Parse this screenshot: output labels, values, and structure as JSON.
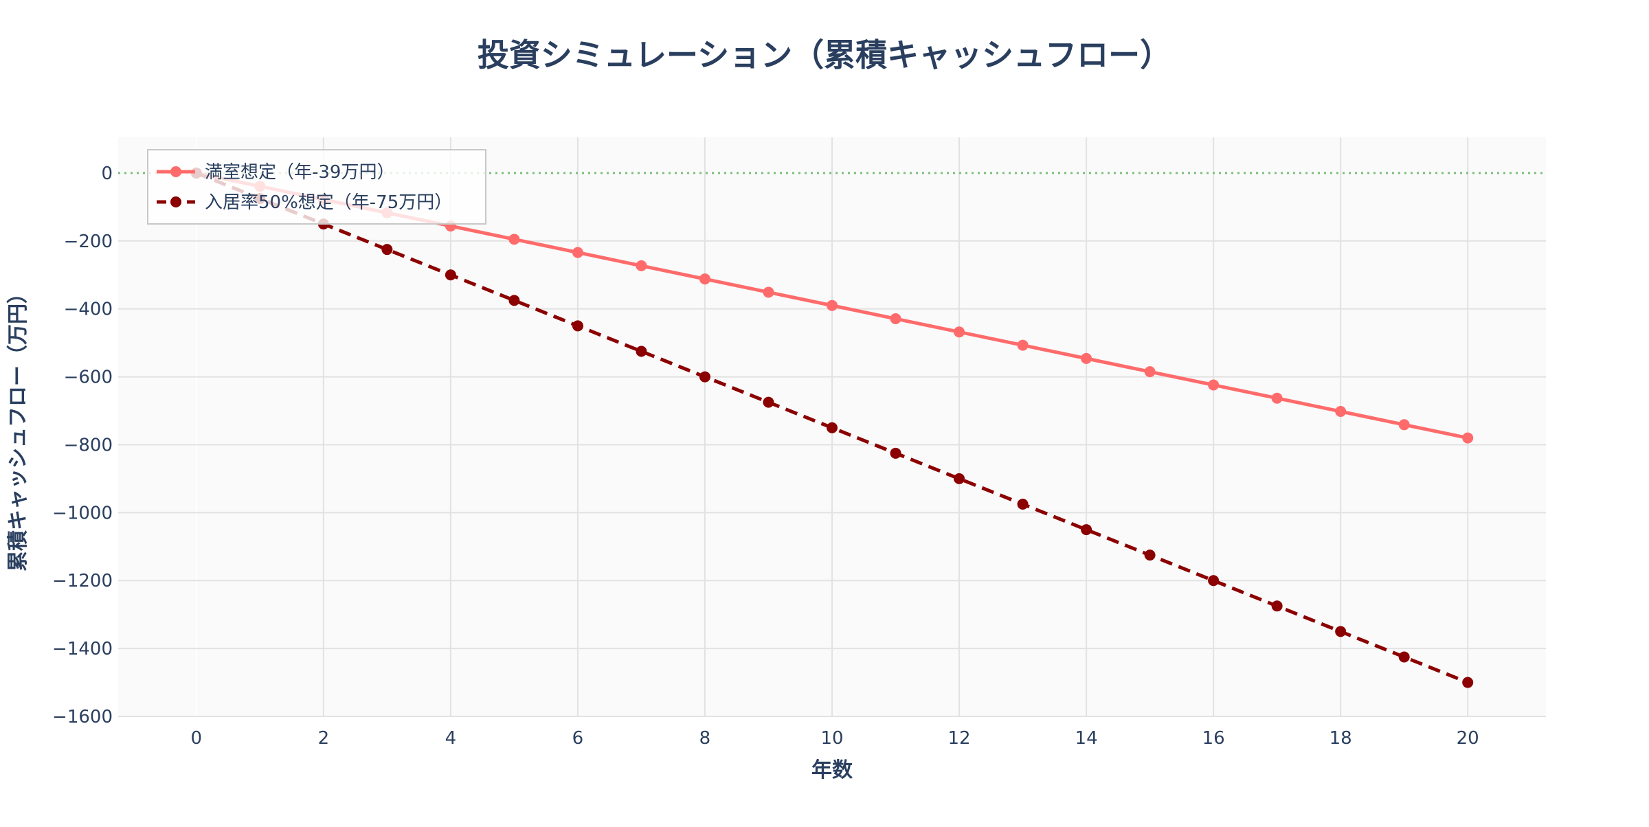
{
  "chart_data": {
    "type": "line",
    "title": "投資シミュレーション（累積キャッシュフロー）",
    "xlabel": "年数",
    "ylabel": "累積キャッシュフロー（万円）",
    "xlim": [
      -1.23,
      21.23
    ],
    "ylim": [
      -1600,
      105
    ],
    "xticks": [
      0,
      2,
      4,
      6,
      8,
      10,
      12,
      14,
      16,
      18,
      20
    ],
    "yticks": [
      0,
      -200,
      -400,
      -600,
      -800,
      -1000,
      -1200,
      -1400,
      -1600
    ],
    "ytick_labels": [
      "0",
      "−200",
      "−400",
      "−600",
      "−800",
      "−1000",
      "−1200",
      "−1400",
      "−1600"
    ],
    "grid": true,
    "legend_placement": "top-left",
    "reference_line": {
      "y": 0,
      "style": "dotted",
      "color": "#7cbf7c"
    },
    "x": [
      0,
      1,
      2,
      3,
      4,
      5,
      6,
      7,
      8,
      9,
      10,
      11,
      12,
      13,
      14,
      15,
      16,
      17,
      18,
      19,
      20
    ],
    "series": [
      {
        "name": "満室想定（年-39万円）",
        "color": "#ff6b6b",
        "dash": "solid",
        "values": [
          0,
          -39,
          -78,
          -117,
          -156,
          -195,
          -234,
          -273,
          -312,
          -351,
          -390,
          -429,
          -468,
          -507,
          -546,
          -585,
          -624,
          -663,
          -702,
          -741,
          -780
        ]
      },
      {
        "name": "入居率50%想定（年-75万円）",
        "color": "#8b0000",
        "dash": "dashed",
        "values": [
          0,
          -75,
          -150,
          -225,
          -300,
          -375,
          -450,
          -525,
          -600,
          -675,
          -750,
          -825,
          -900,
          -975,
          -1050,
          -1125,
          -1200,
          -1275,
          -1350,
          -1425,
          -1500
        ]
      }
    ]
  }
}
